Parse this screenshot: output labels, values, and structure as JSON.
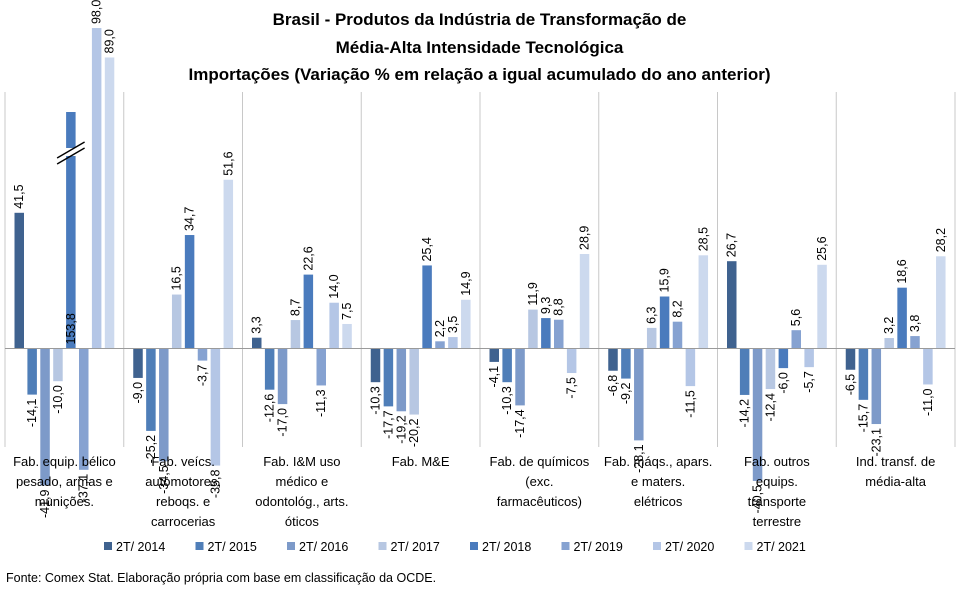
{
  "chart_data": {
    "type": "bar",
    "title_lines": [
      "Brasil - Produtos da Indústria de Transformação de",
      "Média-Alta Intensidade Tecnológica",
      "Importações (Variação % em relação a igual acumulado do ano anterior)"
    ],
    "categories": [
      [
        "Fab. equip. bélico",
        "pesado, armas e",
        "munições."
      ],
      [
        "Fab. veícs.",
        "automotores,",
        "reboqs. e",
        "carrocerias"
      ],
      [
        "Fab. I&M uso",
        "médico e",
        "odontológ., arts.",
        "óticos"
      ],
      [
        "Fab. M&E"
      ],
      [
        "Fab. de químicos",
        "(exc.",
        "farmacêuticos)"
      ],
      [
        "Fab. máqs., apars.",
        "e maters.",
        "elétricos"
      ],
      [
        "Fab. outros",
        "equips.",
        "transporte",
        "terrestre"
      ],
      [
        "Ind. transf. de",
        "média-alta"
      ]
    ],
    "series": [
      {
        "name": "2T/ 2014",
        "color": "#3f628f",
        "values": [
          41.5,
          -9.0,
          3.3,
          -10.3,
          -4.1,
          -6.8,
          26.7,
          -6.5
        ],
        "labels": [
          "41,5",
          "-9,0",
          "3,3",
          "-10,3",
          "-4,1",
          "-6,8",
          "26,7",
          "-6,5"
        ]
      },
      {
        "name": "2T/ 2015",
        "color": "#4f7eb8",
        "values": [
          -14.1,
          -25.2,
          -12.6,
          -17.7,
          -10.3,
          -9.2,
          -14.2,
          -15.7
        ],
        "labels": [
          "-14,1",
          "-25,2",
          "-12,6",
          "-17,7",
          "-10,3",
          "-9,2",
          "-14,2",
          "-15,7"
        ]
      },
      {
        "name": "2T/ 2016",
        "color": "#7d9ac9",
        "values": [
          -41.9,
          -34.5,
          -17.0,
          -19.2,
          -17.4,
          -28.1,
          -40.5,
          -23.1
        ],
        "labels": [
          "-41,9",
          "-34,5",
          "-17,0",
          "-19,2",
          "-17,4",
          "-28,1",
          "-40,5",
          "-23,1"
        ]
      },
      {
        "name": "2T/ 2017",
        "color": "#b7c7e2",
        "values": [
          -10.0,
          16.5,
          8.7,
          -20.2,
          11.9,
          6.3,
          -12.4,
          3.2
        ],
        "labels": [
          "-10,0",
          "16,5",
          "8,7",
          "-20,2",
          "11,9",
          "6,3",
          "-12,4",
          "3,2"
        ]
      },
      {
        "name": "2T/ 2018",
        "color": "#4a7bbd",
        "values": [
          153.8,
          34.7,
          22.6,
          25.4,
          9.3,
          15.9,
          -6.0,
          18.6
        ],
        "labels": [
          "153,8",
          "34,7",
          "22,6",
          "25,4",
          "9,3",
          "15,9",
          "-6,0",
          "18,6"
        ]
      },
      {
        "name": "2T/ 2019",
        "color": "#86a2d1",
        "values": [
          -37.1,
          -3.7,
          -11.3,
          2.2,
          8.8,
          8.2,
          5.6,
          3.8
        ],
        "labels": [
          "-37,1",
          "-3,7",
          "-11,3",
          "2,2",
          "8,8",
          "8,2",
          "5,6",
          "3,8"
        ]
      },
      {
        "name": "2T/ 2020",
        "color": "#b4c6e6",
        "values": [
          98.0,
          -35.8,
          14.0,
          3.5,
          -7.5,
          -11.5,
          -5.7,
          -11.0
        ],
        "labels": [
          "98,0",
          "-35,8",
          "14,0",
          "3,5",
          "-7,5",
          "-11,5",
          "-5,7",
          "-11,0"
        ]
      },
      {
        "name": "2T/ 2021",
        "color": "#ccd9ee",
        "values": [
          89.0,
          51.6,
          7.5,
          14.9,
          28.9,
          28.5,
          25.6,
          28.2
        ],
        "labels": [
          "89,0",
          "51,6",
          "7,5",
          "14,9",
          "28,9",
          "28,5",
          "25,6",
          "28,2"
        ]
      }
    ],
    "axis_break": {
      "series": "2T/ 2018",
      "category_index": 0
    },
    "ylim": [
      -55,
      120
    ],
    "legend_position": "bottom",
    "grid": false
  },
  "source": "Fonte: Comex Stat. Elaboração própria com base em classificação da OCDE."
}
